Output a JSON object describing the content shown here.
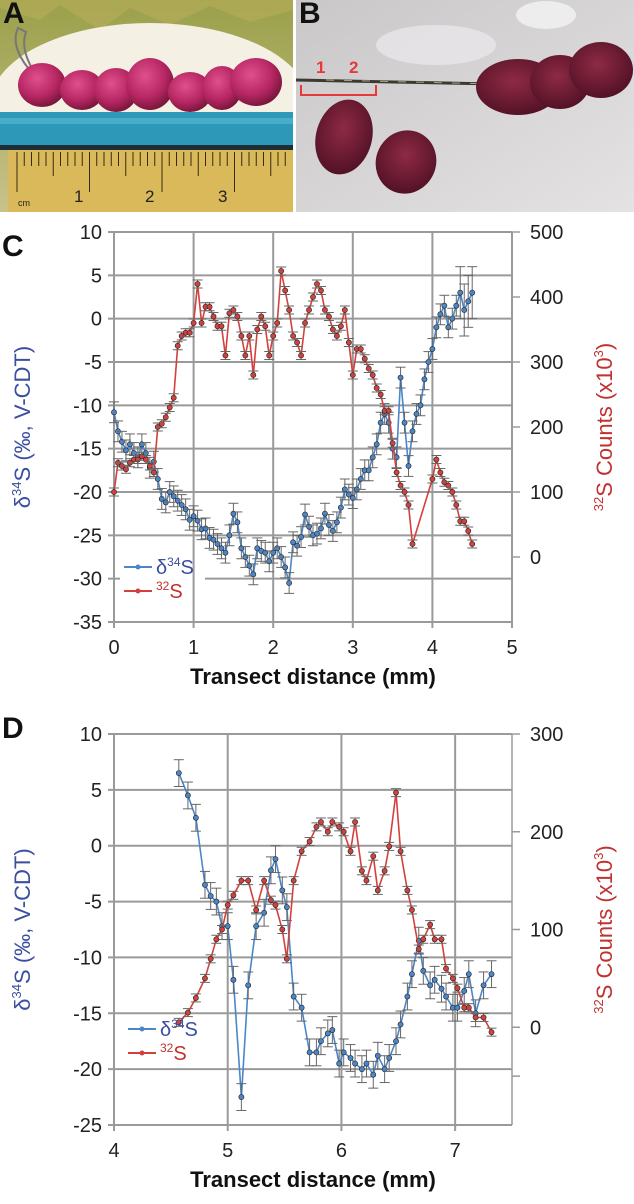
{
  "panels": {
    "A": {
      "letter": "A",
      "ruler_unit": "cm",
      "ruler_labels": [
        "1",
        "2",
        "3"
      ]
    },
    "B": {
      "letter": "B",
      "marker_labels": [
        "1",
        "2"
      ]
    },
    "C": {
      "letter": "C"
    },
    "D": {
      "letter": "D"
    }
  },
  "colors": {
    "d34S": "#4a86c8",
    "s32": "#d2413c",
    "left_axis_label": "#3a4fa0",
    "right_axis_label": "#c0312f",
    "grid": "#9a9a9a"
  },
  "chart_data": [
    {
      "type": "line",
      "panel": "C",
      "xlabel": "Transect distance (mm)",
      "ylabel": "δ34S (‰, V-CDT)",
      "ylabel_parts": {
        "delta": "δ",
        "sup": "34",
        "rest": "S (‰, V-CDT)"
      },
      "y2label": "32S Counts (x10³)",
      "y2label_parts": {
        "sup": "32",
        "main": "S Counts (x10",
        "sup2": "3",
        "close": ")"
      },
      "xlim": [
        0,
        5
      ],
      "ylim": [
        -35,
        10
      ],
      "y2lim": [
        -100,
        500
      ],
      "xticks": [
        "0",
        "1",
        "2",
        "3",
        "4",
        "5"
      ],
      "yticks": [
        "10",
        "5",
        "0",
        "-5",
        "-10",
        "-15",
        "-20",
        "-25",
        "-30",
        "-35"
      ],
      "y2ticks": [
        "500",
        "400",
        "300",
        "200",
        "100",
        "0"
      ],
      "grid": true,
      "legend": {
        "position": "bottom-left",
        "entries": [
          {
            "sup": "34",
            "label": "δ34S",
            "prefix": "δ",
            "suffix": "S"
          },
          {
            "sup": "32",
            "label": "32S",
            "prefix": "",
            "suffix": "S"
          }
        ]
      },
      "series": [
        {
          "name": "δ34S",
          "axis": "left",
          "x": [
            0.0,
            0.05,
            0.1,
            0.15,
            0.2,
            0.25,
            0.3,
            0.35,
            0.4,
            0.45,
            0.5,
            0.55,
            0.6,
            0.65,
            0.7,
            0.75,
            0.8,
            0.85,
            0.9,
            0.95,
            1.0,
            1.05,
            1.1,
            1.15,
            1.2,
            1.25,
            1.3,
            1.35,
            1.4,
            1.45,
            1.5,
            1.55,
            1.6,
            1.65,
            1.7,
            1.75,
            1.8,
            1.85,
            1.9,
            1.95,
            2.0,
            2.05,
            2.1,
            2.15,
            2.2,
            2.25,
            2.3,
            2.35,
            2.4,
            2.45,
            2.5,
            2.55,
            2.6,
            2.65,
            2.7,
            2.75,
            2.8,
            2.85,
            2.9,
            2.95,
            3.0,
            3.05,
            3.1,
            3.15,
            3.2,
            3.25,
            3.3,
            3.35,
            3.4,
            3.45,
            3.5,
            3.55,
            3.6,
            3.65,
            3.7,
            3.75,
            3.8,
            3.85,
            3.9,
            3.95,
            4.0,
            4.05,
            4.1,
            4.15,
            4.2,
            4.25,
            4.3,
            4.35,
            4.4,
            4.45,
            4.5
          ],
          "y": [
            -10.8,
            -13,
            -14.2,
            -15.2,
            -14.5,
            -15.5,
            -16,
            -14.5,
            -15.5,
            -17.2,
            -16.5,
            -18.5,
            -20.8,
            -21.2,
            -20,
            -20.5,
            -21,
            -21.5,
            -22,
            -23.2,
            -22.8,
            -23.3,
            -24.3,
            -24.2,
            -25.3,
            -25.5,
            -26,
            -26.5,
            -27,
            -25,
            -22.5,
            -23.5,
            -26.5,
            -27.5,
            -28.5,
            -29.5,
            -26.5,
            -26.8,
            -27,
            -28,
            -27,
            -26.5,
            -27.5,
            -28.7,
            -30.5,
            -25.8,
            -26.2,
            -25.2,
            -22.6,
            -24,
            -25,
            -24.8,
            -24.2,
            -22.5,
            -23.8,
            -24.5,
            -23.5,
            -21.8,
            -19.7,
            -20.3,
            -20.7,
            -19.7,
            -18.5,
            -17.5,
            -17.5,
            -16,
            -14.5,
            -12,
            -11,
            -12,
            -15,
            -16,
            -6.8,
            -12,
            -17,
            -13,
            -11,
            -10,
            -7,
            -5,
            -3.5,
            -1,
            0.5,
            1.5,
            -1,
            0,
            1.5,
            3,
            1,
            2,
            3
          ]
        },
        {
          "name": "32S",
          "axis": "right",
          "x": [
            0.0,
            0.05,
            0.1,
            0.15,
            0.2,
            0.25,
            0.3,
            0.35,
            0.4,
            0.45,
            0.5,
            0.55,
            0.6,
            0.65,
            0.7,
            0.75,
            0.8,
            0.85,
            0.9,
            0.95,
            1.0,
            1.05,
            1.1,
            1.15,
            1.2,
            1.25,
            1.3,
            1.35,
            1.4,
            1.45,
            1.5,
            1.55,
            1.6,
            1.65,
            1.7,
            1.75,
            1.8,
            1.85,
            1.9,
            1.95,
            2.0,
            2.05,
            2.1,
            2.15,
            2.2,
            2.25,
            2.3,
            2.35,
            2.4,
            2.45,
            2.5,
            2.55,
            2.6,
            2.65,
            2.7,
            2.75,
            2.8,
            2.85,
            2.9,
            2.95,
            3.0,
            3.05,
            3.1,
            3.15,
            3.2,
            3.25,
            3.3,
            3.35,
            3.4,
            3.45,
            3.5,
            3.55,
            3.6,
            3.65,
            3.7,
            3.75,
            4.0,
            4.05,
            4.1,
            4.15,
            4.2,
            4.25,
            4.3,
            4.35,
            4.4,
            4.45,
            4.5
          ],
          "y": [
            100,
            145,
            140,
            135,
            145,
            150,
            150,
            155,
            150,
            140,
            130,
            200,
            205,
            215,
            230,
            245,
            325,
            340,
            345,
            345,
            360,
            420,
            360,
            385,
            385,
            370,
            355,
            355,
            310,
            375,
            380,
            370,
            340,
            310,
            340,
            280,
            350,
            370,
            355,
            310,
            340,
            360,
            440,
            410,
            380,
            340,
            330,
            310,
            360,
            380,
            400,
            420,
            410,
            380,
            370,
            350,
            340,
            355,
            380,
            330,
            280,
            320,
            320,
            305,
            290,
            280,
            260,
            250,
            225,
            225,
            175,
            130,
            110,
            100,
            80,
            20,
            120,
            150,
            130,
            115,
            110,
            100,
            80,
            55,
            55,
            40,
            20
          ]
        }
      ]
    },
    {
      "type": "line",
      "panel": "D",
      "xlabel": "Transect distance (mm)",
      "ylabel": "δ34S (‰, V-CDT)",
      "ylabel_parts": {
        "delta": "δ",
        "sup": "34",
        "rest": "S (‰, V-CDT)"
      },
      "y2label": "32S Counts (x10³)",
      "y2label_parts": {
        "sup": "32",
        "main": "S Counts (x10",
        "sup2": "3",
        "close": ")"
      },
      "xlim": [
        4,
        7.5
      ],
      "ylim": [
        -25,
        10
      ],
      "y2lim": [
        -100,
        300
      ],
      "xticks": [
        "4",
        "5",
        "6",
        "7"
      ],
      "yticks": [
        "10",
        "5",
        "0",
        "-5",
        "-10",
        "-15",
        "-20",
        "-25"
      ],
      "y2ticks": [
        "300",
        "200",
        "100",
        "0"
      ],
      "grid": true,
      "legend": {
        "position": "bottom-left",
        "entries": [
          {
            "sup": "34",
            "label": "δ34S",
            "prefix": "δ",
            "suffix": "S"
          },
          {
            "sup": "32",
            "label": "32S",
            "prefix": "",
            "suffix": "S"
          }
        ]
      },
      "series": [
        {
          "name": "δ34S",
          "axis": "left",
          "x": [
            4.57,
            4.65,
            4.72,
            4.8,
            4.85,
            4.9,
            4.95,
            5.0,
            5.05,
            5.12,
            5.18,
            5.25,
            5.32,
            5.38,
            5.42,
            5.48,
            5.52,
            5.58,
            5.65,
            5.72,
            5.78,
            5.82,
            5.88,
            5.92,
            5.98,
            6.02,
            6.08,
            6.12,
            6.18,
            6.22,
            6.28,
            6.32,
            6.38,
            6.42,
            6.48,
            6.52,
            6.58,
            6.62,
            6.68,
            6.72,
            6.78,
            6.82,
            6.88,
            6.92,
            6.98,
            7.02,
            7.08,
            7.12,
            7.18,
            7.25,
            7.32
          ],
          "y": [
            6.5,
            4.5,
            2.5,
            -3.5,
            -4.5,
            -5,
            -7.2,
            -7.2,
            -12,
            -22.5,
            -12.5,
            -7.2,
            -6,
            -2.2,
            -1.2,
            -4,
            -5.5,
            -13.5,
            -14.5,
            -18.5,
            -18.5,
            -17.5,
            -16.8,
            -16.5,
            -19.5,
            -18.5,
            -19,
            -19.5,
            -20,
            -19.5,
            -20.5,
            -18.8,
            -20,
            -19,
            -17.5,
            -16,
            -13.5,
            -11.5,
            -8.5,
            -11.2,
            -12.5,
            -12,
            -12.8,
            -13.5,
            -14.5,
            -14.5,
            -13,
            -11.5,
            -15,
            -12.5,
            -11.5
          ]
        },
        {
          "name": "32S",
          "axis": "right",
          "x": [
            4.57,
            4.65,
            4.72,
            4.8,
            4.85,
            4.9,
            4.95,
            5.0,
            5.05,
            5.12,
            5.18,
            5.25,
            5.32,
            5.38,
            5.42,
            5.48,
            5.52,
            5.58,
            5.65,
            5.72,
            5.78,
            5.82,
            5.88,
            5.92,
            5.98,
            6.02,
            6.08,
            6.12,
            6.18,
            6.22,
            6.28,
            6.32,
            6.38,
            6.42,
            6.48,
            6.52,
            6.58,
            6.62,
            6.68,
            6.72,
            6.78,
            6.82,
            6.88,
            6.92,
            6.98,
            7.02,
            7.08,
            7.12,
            7.18,
            7.25,
            7.32
          ],
          "y": [
            5,
            15,
            30,
            50,
            70,
            90,
            100,
            125,
            135,
            150,
            150,
            120,
            150,
            130,
            125,
            100,
            70,
            150,
            180,
            190,
            205,
            210,
            200,
            210,
            205,
            200,
            180,
            210,
            160,
            150,
            175,
            140,
            160,
            185,
            240,
            180,
            140,
            120,
            80,
            90,
            105,
            90,
            90,
            60,
            50,
            40,
            20,
            20,
            10,
            10,
            -5
          ]
        }
      ]
    }
  ]
}
